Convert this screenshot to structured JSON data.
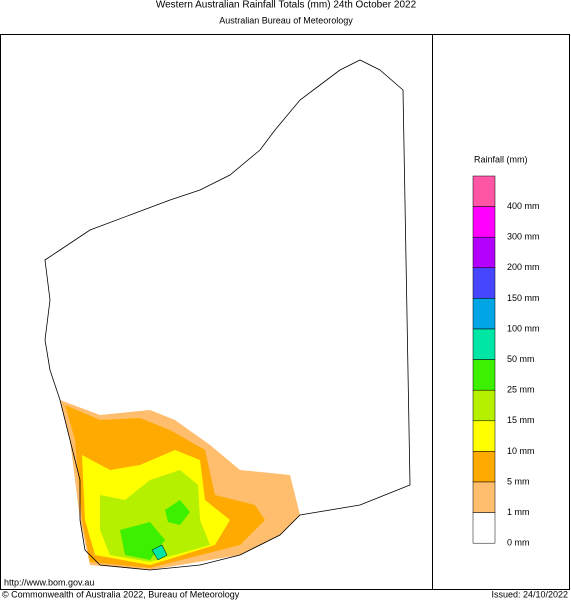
{
  "header": {
    "title": "Western Australian Rainfall Totals (mm) 24th October 2022",
    "subtitle": "Australian Bureau of Meteorology"
  },
  "legend": {
    "title": "Rainfall (mm)",
    "items": [
      {
        "color": "#ff55a5",
        "label": null
      },
      {
        "color": "#ff00ff",
        "label": "400 mm"
      },
      {
        "color": "#b400ff",
        "label": "300 mm"
      },
      {
        "color": "#4646ff",
        "label": "200 mm"
      },
      {
        "color": "#00a5e6",
        "label": "150 mm"
      },
      {
        "color": "#00e6a5",
        "label": "100 mm"
      },
      {
        "color": "#3cf000",
        "label": "50 mm"
      },
      {
        "color": "#b4f000",
        "label": "25 mm"
      },
      {
        "color": "#ffff00",
        "label": "15 mm"
      },
      {
        "color": "#ffaa00",
        "label": "10 mm"
      },
      {
        "color": "#ffbe6e",
        "label": "5 mm"
      },
      {
        "color": "#ffffff",
        "label": "1 mm"
      }
    ],
    "bottom_label": "0 mm"
  },
  "footer": {
    "url": "http://www.bom.gov.au",
    "copyright": "© Commonwealth of Australia 2022, Bureau of Meteorology",
    "issued": "Issued: 24/10/2022"
  }
}
